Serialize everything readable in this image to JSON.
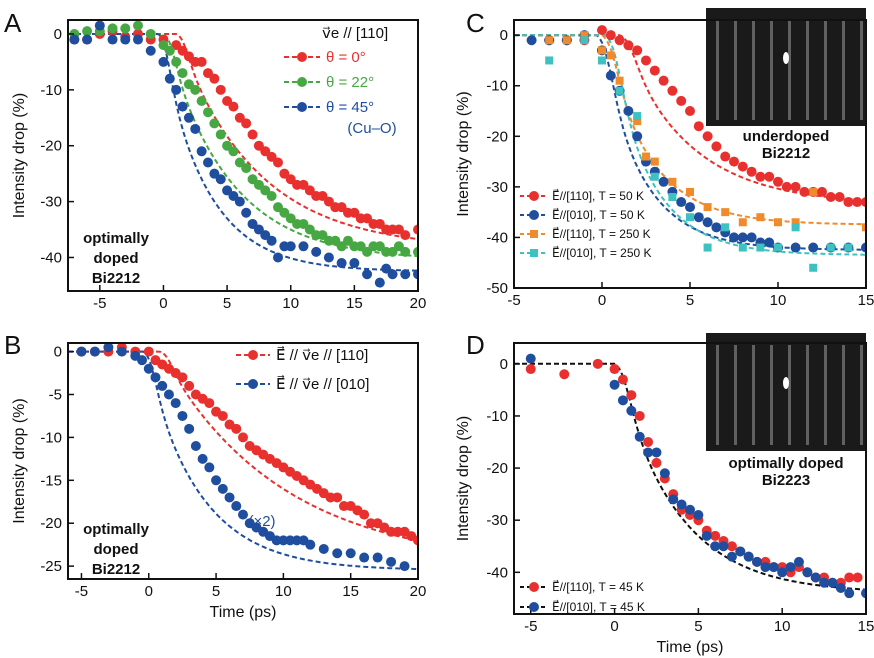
{
  "chart_data": [
    {
      "panel": "A",
      "type": "scatter",
      "xlim": [
        -7.5,
        20
      ],
      "ylim": [
        -46,
        2.5
      ],
      "xticks": [
        -5,
        0,
        5,
        10,
        15,
        20
      ],
      "yticks": [
        0,
        -10,
        -20,
        -30,
        -40
      ],
      "xlabel": "",
      "ylabel": "Intensity drop (%)",
      "show_xticklabels": true,
      "legend_title": "v⃗e // [110]",
      "annotation": [
        "optimally",
        "doped",
        "Bi2212"
      ],
      "series": [
        {
          "name": "θ = 0°",
          "color": "#e8312f",
          "x": [
            -7,
            -6,
            -5,
            -4,
            -3,
            -2,
            -1,
            0,
            1,
            1.5,
            2,
            2.5,
            3,
            3.5,
            4,
            4.5,
            5,
            5.5,
            6,
            6.5,
            7,
            7.5,
            8,
            8.5,
            9,
            9.5,
            10,
            10.5,
            11,
            11.5,
            12,
            12.5,
            13,
            13.5,
            14,
            14.5,
            15,
            15.5,
            16,
            16.5,
            17,
            17.5,
            18,
            18.5,
            19,
            20
          ],
          "y": [
            -1,
            -1,
            0,
            0.5,
            -0.5,
            0,
            -1,
            -1,
            -2,
            -3,
            -4,
            -5,
            -5,
            -7,
            -8,
            -10,
            -12,
            -13,
            -15,
            -16,
            -18,
            -20,
            -21,
            -22,
            -23,
            -25,
            -26,
            -27,
            -27,
            -28,
            -29,
            -29,
            -30,
            -31,
            -31,
            -32,
            -32,
            -33,
            -33,
            -34,
            -34,
            -35,
            -35,
            -35,
            -36,
            -35
          ]
        },
        {
          "name": "θ = 22°",
          "color": "#47a843",
          "x": [
            -7,
            -6,
            -5,
            -4,
            -3,
            -2,
            -1,
            0,
            0.5,
            1,
            1.5,
            2,
            2.5,
            3,
            3.5,
            4,
            4.5,
            5,
            5.5,
            6,
            6.5,
            7,
            7.5,
            8,
            8.5,
            9,
            9.5,
            10,
            10.5,
            11,
            11.5,
            12,
            12.5,
            13,
            13.5,
            14,
            14.5,
            15,
            15.5,
            16,
            16.5,
            17,
            17.5,
            18,
            18.5,
            19,
            20
          ],
          "y": [
            0,
            0.5,
            0.5,
            1,
            1,
            1.5,
            0,
            -2,
            -3,
            -5,
            -7,
            -9,
            -10,
            -12,
            -14,
            -16,
            -18,
            -20,
            -21,
            -23,
            -24,
            -26,
            -27,
            -28,
            -29,
            -31,
            -32,
            -33,
            -34,
            -34,
            -35,
            -36,
            -36,
            -37,
            -37,
            -38,
            -37,
            -38,
            -38,
            -39,
            -38,
            -38,
            -39,
            -39,
            -38,
            -39,
            -39
          ]
        },
        {
          "name": "θ = 45°",
          "color": "#1f4e9e",
          "x": [
            -7,
            -6,
            -5,
            -4,
            -3,
            -2,
            -1,
            0,
            0.5,
            1,
            1.5,
            2,
            2.5,
            3,
            3.5,
            4,
            4.5,
            5,
            5.5,
            6,
            6.5,
            7,
            7.5,
            8,
            8.5,
            9,
            9.5,
            10,
            11,
            12,
            13,
            14,
            15,
            16,
            17,
            17.5,
            18,
            19,
            20
          ],
          "y": [
            -1,
            -1,
            1.5,
            -1,
            -1,
            -1,
            -3,
            -5,
            -8,
            -10,
            -13,
            -15,
            -17,
            -21,
            -23,
            -25,
            -26,
            -28,
            -29,
            -30,
            -32,
            -34,
            -35,
            -36,
            -37,
            -40,
            -38,
            -38,
            -38,
            -39,
            -40,
            -41,
            -41,
            -43,
            -44.5,
            -42,
            -43,
            -43,
            -43
          ]
        }
      ],
      "sublabel": "(Cu–O)"
    },
    {
      "panel": "B",
      "type": "scatter",
      "xlim": [
        -6,
        20
      ],
      "ylim": [
        -26.5,
        1
      ],
      "xticks": [
        -5,
        0,
        5,
        10,
        15,
        20
      ],
      "yticks": [
        0,
        -5,
        -10,
        -15,
        -20,
        -25
      ],
      "xlabel": "Time (ps)",
      "ylabel": "Intensity drop (%)",
      "show_xticklabels": true,
      "annotation": [
        "optimally",
        "doped",
        "Bi2212"
      ],
      "series": [
        {
          "name": "E⃗ // v⃗e // [110]",
          "color": "#e8312f",
          "x": [
            -5,
            -4,
            -3,
            -2,
            -1,
            0,
            0.5,
            1,
            1.5,
            2,
            2.5,
            3,
            3.5,
            4,
            4.5,
            5,
            5.5,
            6,
            6.5,
            7,
            7.5,
            8,
            8.5,
            9,
            9.5,
            10,
            10.5,
            11,
            11.5,
            12,
            12.5,
            13,
            13.5,
            14,
            14.5,
            15,
            15.5,
            16,
            16.5,
            17,
            17.5,
            18,
            18.5,
            19,
            19.5,
            20
          ],
          "y": [
            0,
            0,
            0,
            0.5,
            0,
            0,
            -1,
            -1.5,
            -2,
            -2.5,
            -3,
            -4,
            -5,
            -5.5,
            -6,
            -7,
            -7.5,
            -8.5,
            -9,
            -10,
            -11,
            -11.5,
            -12,
            -12.5,
            -13,
            -13.5,
            -14,
            -14.5,
            -15,
            -15.5,
            -16,
            -16.5,
            -17,
            -17,
            -18,
            -18,
            -18.5,
            -19,
            -20,
            -20,
            -20.5,
            -21,
            -21,
            -21,
            -21.5,
            -22
          ]
        },
        {
          "name": "E⃗ // v⃗e // [010]",
          "color": "#1f4e9e",
          "x": [
            -5,
            -4,
            -3,
            -2,
            -1,
            -0.5,
            0,
            0.5,
            1,
            1.5,
            2,
            2.5,
            3,
            3.5,
            4,
            4.5,
            5,
            5.5,
            6,
            6.5,
            7,
            7.5,
            8,
            8.5,
            9,
            9.5,
            10,
            10.5,
            11,
            11.5,
            12,
            13,
            14,
            15,
            16,
            17,
            18,
            19
          ],
          "y": [
            0,
            0,
            0.5,
            0,
            -0.5,
            -1,
            -2,
            -3,
            -4,
            -5,
            -6,
            -7.5,
            -9,
            -11,
            -12.5,
            -13.5,
            -15,
            -16,
            -17,
            -18,
            -19,
            -20,
            -20.5,
            -21,
            -21.5,
            -22,
            -22,
            -22,
            -22,
            -22,
            -22.5,
            -23,
            -23.5,
            -23.5,
            -24,
            -24,
            -24.5,
            -25
          ]
        }
      ],
      "sublabel": "(×2)"
    },
    {
      "panel": "C",
      "type": "scatter",
      "xlim": [
        -5,
        15
      ],
      "ylim": [
        -50,
        3
      ],
      "xticks": [
        -5,
        0,
        5,
        10,
        15
      ],
      "yticks": [
        0,
        -10,
        -20,
        -30,
        -40,
        -50
      ],
      "xlabel": "",
      "ylabel": "Intensity drop (%)",
      "show_xticklabels": true,
      "annotation": [
        "underdoped",
        "Bi2212"
      ],
      "series": [
        {
          "name": "E⃗//[110], T = 50 K",
          "color": "#e8312f",
          "x": [
            -3,
            -2,
            -1,
            0,
            0.5,
            1,
            1.5,
            2,
            2.5,
            3,
            3.5,
            4,
            4.5,
            5,
            5.5,
            6,
            6.5,
            7,
            7.5,
            8,
            8.5,
            9,
            9.5,
            10,
            10.5,
            11,
            11.5,
            12,
            12.5,
            13,
            13.5,
            14,
            14.5,
            15
          ],
          "y": [
            -1,
            -1,
            -1,
            1,
            0,
            -1,
            -2,
            -3,
            -5,
            -7,
            -9,
            -11,
            -13,
            -15,
            -18,
            -20,
            -22,
            -24,
            -25,
            -26,
            -27,
            -28,
            -28,
            -29,
            -30,
            -30,
            -31,
            -31,
            -31,
            -32,
            -32,
            -33,
            -33,
            -33
          ]
        },
        {
          "name": "E⃗//[010], T = 50 K",
          "color": "#1f4e9e",
          "x": [
            -4,
            -3,
            -2,
            -1,
            0,
            0.5,
            1,
            1.5,
            2,
            2.5,
            3,
            3.5,
            4,
            4.5,
            5,
            5.5,
            6,
            6.5,
            7,
            7.5,
            8,
            8.5,
            9,
            9.5,
            10,
            11,
            12,
            13,
            14,
            15
          ],
          "y": [
            -1,
            -1,
            -1,
            0,
            -3,
            -8,
            -11,
            -15,
            -20,
            -25,
            -27,
            -29,
            -31,
            -33,
            -34,
            -36,
            -37,
            -38,
            -39,
            -40,
            -40,
            -40,
            -41,
            -41,
            -42,
            -42,
            -42,
            -42,
            -42,
            -42
          ]
        },
        {
          "name": "E⃗//[110], T = 250 K",
          "color": "#f08a2b",
          "x": [
            -3,
            -2,
            -1,
            0,
            0.5,
            1,
            2,
            2.5,
            3,
            4,
            5,
            6,
            7,
            8,
            9,
            10,
            11,
            12,
            15
          ],
          "y": [
            -1,
            -1,
            0,
            -3,
            -4,
            -9,
            -17,
            -24,
            -25,
            -29,
            -31,
            -34,
            -35,
            -37,
            -36,
            -37,
            -37,
            -31,
            -38
          ]
        },
        {
          "name": "E⃗//[010], T = 250 K",
          "color": "#3ec1c1",
          "x": [
            -3,
            -2,
            -1,
            0,
            1,
            2,
            3,
            4,
            5,
            6,
            7,
            8,
            9,
            10,
            11,
            12,
            13,
            14
          ],
          "y": [
            -5,
            4,
            -1,
            -5,
            -11,
            -16,
            -28,
            -32,
            -36,
            -42,
            -38,
            -42,
            -42,
            -42,
            -38,
            -46,
            -42,
            -42
          ]
        }
      ]
    },
    {
      "panel": "D",
      "type": "scatter",
      "xlim": [
        -6,
        15
      ],
      "ylim": [
        -48,
        4
      ],
      "xticks": [
        -5,
        0,
        5,
        10,
        15
      ],
      "yticks": [
        0,
        -10,
        -20,
        -30,
        -40
      ],
      "xlabel": "Time (ps)",
      "ylabel": "Intensity drop (%)",
      "show_xticklabels": true,
      "annotation": [
        "optimally doped",
        "Bi2223"
      ],
      "series": [
        {
          "name": "E⃗//[110], T = 45 K",
          "color": "#e8312f",
          "x": [
            -5,
            -3,
            -1,
            0,
            0.5,
            1,
            1.5,
            2,
            2.5,
            3,
            3.5,
            4,
            4.5,
            5,
            5.5,
            6,
            6.5,
            7,
            7.5,
            8,
            8.5,
            9,
            9.5,
            10,
            10.5,
            11,
            11.5,
            12,
            12.5,
            13,
            13.5,
            14,
            14.5
          ],
          "y": [
            -1,
            -2,
            0,
            -1,
            -3,
            -6,
            -10,
            -15,
            -19,
            -22,
            -25,
            -28,
            -29,
            -30,
            -32,
            -33,
            -34,
            -35,
            -36,
            -37,
            -38,
            -38,
            -39,
            -39,
            -40,
            -39,
            -40,
            -41,
            -41,
            -42,
            -42,
            -41,
            -41
          ]
        },
        {
          "name": "E⃗//[010], T = 45 K",
          "color": "#1f4e9e",
          "x": [
            -5,
            0,
            0.5,
            1,
            1.5,
            2,
            2.5,
            3,
            3.5,
            4,
            4.5,
            5,
            5.5,
            6,
            6.5,
            7,
            7.5,
            8,
            8.5,
            9,
            9.5,
            10,
            10.5,
            11,
            11.5,
            12,
            12.5,
            13,
            13.5,
            14,
            15
          ],
          "y": [
            1,
            -4,
            -7,
            -9,
            -14,
            -17,
            -17,
            -21,
            -26,
            -27,
            -28,
            -29,
            -33,
            -35,
            -35,
            -37,
            -36,
            -37,
            -38,
            -39,
            -39,
            -40,
            -39,
            -38,
            -40,
            -41,
            -42,
            -42,
            -43,
            -44,
            -44
          ]
        }
      ]
    }
  ],
  "panel_letters": [
    "A",
    "B",
    "C",
    "D"
  ],
  "x_axis_label": "Time (ps)",
  "y_axis_label": "Intensity drop (%)",
  "legend_A": {
    "title": "v⃗e // [110]",
    "items": [
      "θ = 0°",
      "θ = 22°",
      "θ = 45°"
    ],
    "sub": "(Cu–O)"
  },
  "legend_B": {
    "items": [
      "E⃗ // v⃗e // [110]",
      "E⃗ // v⃗e // [010]"
    ],
    "sub": "(×2)"
  },
  "legend_C": {
    "items": [
      "E⃗//[110], T = 50 K",
      "E⃗//[010], T = 50 K",
      "E⃗//[110], T = 250 K",
      "E⃗//[010], T = 250 K"
    ]
  },
  "legend_D": {
    "items": [
      "E⃗//[110], T = 45 K",
      "E⃗//[010], T = 45 K"
    ]
  }
}
